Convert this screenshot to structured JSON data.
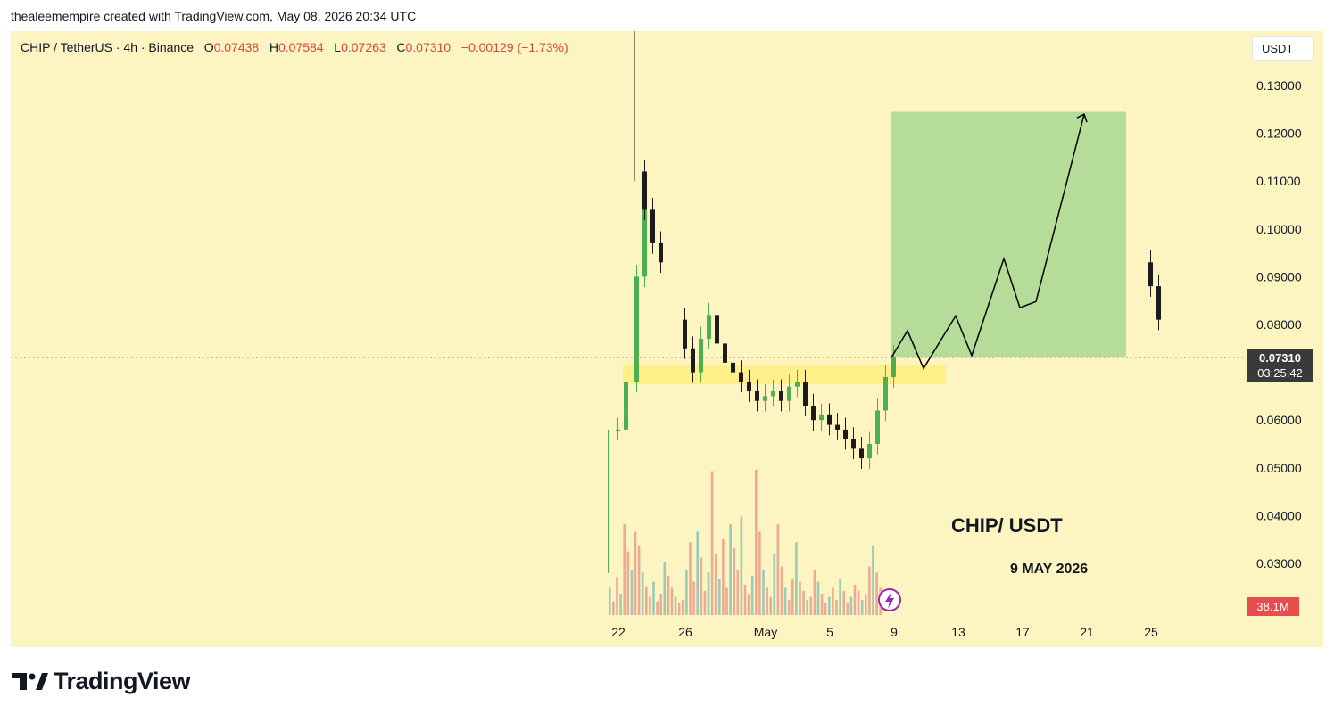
{
  "header": {
    "credit": "thealeemempire created with TradingView.com, May 08, 2026 20:34 UTC"
  },
  "legend": {
    "symbol": "CHIP / TetherUS · 4h · Binance",
    "open_label": "O",
    "open": "0.07438",
    "high_label": "H",
    "high": "0.07584",
    "low_label": "L",
    "low": "0.07263",
    "close_label": "C",
    "close": "0.07310",
    "change": "−0.00129 (−1.73%)"
  },
  "currency_button": "USDT",
  "price_tag": {
    "price": "0.07310",
    "countdown": "03:25:42"
  },
  "volume_tag": "38.1M",
  "annotations": {
    "title": "CHIP/ USDT",
    "date": "9 MAY 2026"
  },
  "brand": {
    "name": "TradingView",
    "logo_icon": "tradingview-logo-icon"
  },
  "colors": {
    "background": "#fcf5c2",
    "up": "#4caf50",
    "down": "#1b1b1b",
    "target_zone": "#b5dc98",
    "support_zone": "#fff08a",
    "price_tag": "#3a3a3a",
    "volume_tag": "#e84d4d"
  },
  "chart_data": {
    "type": "candlestick",
    "timeframe": "4h",
    "y_axis": {
      "ticks": [
        "0.13000",
        "0.12000",
        "0.11000",
        "0.10000",
        "0.09000",
        "0.08000",
        "0.06000",
        "0.05000",
        "0.04000",
        "0.03000"
      ],
      "ylim": [
        0.027,
        0.135
      ],
      "position": "right"
    },
    "x_axis": {
      "ticks": [
        "22",
        "26",
        "May",
        "5",
        "9",
        "13",
        "17",
        "21",
        "25"
      ]
    },
    "current_price": 0.0731,
    "price_path": [
      [
        "22",
        0.058
      ],
      [
        "22",
        0.061
      ],
      [
        "22",
        0.068
      ],
      [
        "23",
        0.09
      ],
      [
        "23",
        0.112
      ],
      [
        "23",
        0.108
      ],
      [
        "23",
        0.104
      ],
      [
        "24",
        0.097
      ],
      [
        "24",
        0.093
      ],
      [
        "25",
        0.088
      ],
      [
        "25",
        0.081
      ],
      [
        "26",
        0.075
      ],
      [
        "26",
        0.07
      ],
      [
        "27",
        0.077
      ],
      [
        "27",
        0.082
      ],
      [
        "28",
        0.076
      ],
      [
        "28",
        0.072
      ],
      [
        "29",
        0.07
      ],
      [
        "29",
        0.068
      ],
      [
        "30",
        0.066
      ],
      [
        "30",
        0.064
      ],
      [
        "May",
        0.065
      ],
      [
        "May",
        0.066
      ],
      [
        "2",
        0.064
      ],
      [
        "2",
        0.067
      ],
      [
        "3",
        0.068
      ],
      [
        "3",
        0.063
      ],
      [
        "4",
        0.06
      ],
      [
        "4",
        0.061
      ],
      [
        "5",
        0.059
      ],
      [
        "5",
        0.058
      ],
      [
        "6",
        0.056
      ],
      [
        "6",
        0.054
      ],
      [
        "7",
        0.052
      ],
      [
        "7",
        0.055
      ],
      [
        "8",
        0.062
      ],
      [
        "8",
        0.069
      ],
      [
        "9",
        0.0731
      ]
    ],
    "support_zone": {
      "from": 0.0675,
      "to": 0.0715
    },
    "target_zone": {
      "from": 0.0731,
      "to": 0.1245
    },
    "projection_path": [
      [
        "9",
        0.0731
      ],
      [
        "10",
        0.0787
      ],
      [
        "11",
        0.0708
      ],
      [
        "13",
        0.0818
      ],
      [
        "14",
        0.0735
      ],
      [
        "16",
        0.0938
      ],
      [
        "17",
        0.0835
      ],
      [
        "18",
        0.0848
      ],
      [
        "21",
        0.124
      ]
    ],
    "volume_peak": "38.1M"
  }
}
